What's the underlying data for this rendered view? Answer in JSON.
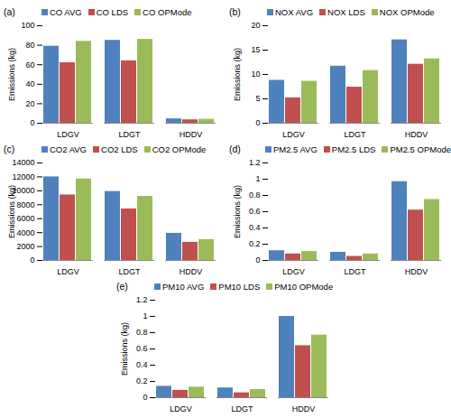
{
  "chart_data": [
    {
      "type": "bar",
      "title": "(a)",
      "ylabel": "Emissions (kg)",
      "categories": [
        "LDGV",
        "LDGT",
        "HDDV"
      ],
      "series": [
        {
          "name": "CO AVG",
          "color": "#4f81bd",
          "values": [
            79,
            85,
            4.5
          ]
        },
        {
          "name": "CO LDS",
          "color": "#c0504d",
          "values": [
            62,
            64,
            3.5
          ]
        },
        {
          "name": "CO OPMode",
          "color": "#9bbb59",
          "values": [
            84,
            86,
            4
          ]
        }
      ],
      "ylim": [
        0,
        100
      ],
      "yticks": [
        0,
        20,
        40,
        60,
        80,
        100
      ],
      "legend": "top",
      "grid": false
    },
    {
      "type": "bar",
      "title": "(b)",
      "ylabel": "Emissions (kg)",
      "categories": [
        "LDGV",
        "LDGT",
        "HDDV"
      ],
      "series": [
        {
          "name": "NOX AVG",
          "color": "#4f81bd",
          "values": [
            8.8,
            11.7,
            17.1
          ]
        },
        {
          "name": "NOX LDS",
          "color": "#c0504d",
          "values": [
            5.2,
            7.4,
            12.1
          ]
        },
        {
          "name": "NOX OPMode",
          "color": "#9bbb59",
          "values": [
            8.6,
            10.8,
            13.2
          ]
        }
      ],
      "ylim": [
        0,
        20
      ],
      "yticks": [
        0,
        5,
        10,
        15,
        20
      ],
      "legend": "top",
      "grid": false
    },
    {
      "type": "bar",
      "title": "(c)",
      "ylabel": "Emissions (kg)",
      "categories": [
        "LDGV",
        "LDGT",
        "HDDV"
      ],
      "series": [
        {
          "name": "CO2 AVG",
          "color": "#4f81bd",
          "values": [
            12000,
            9900,
            3900
          ]
        },
        {
          "name": "CO2 LDS",
          "color": "#c0504d",
          "values": [
            9400,
            7400,
            2600
          ]
        },
        {
          "name": "CO2 OPMode",
          "color": "#9bbb59",
          "values": [
            11700,
            9200,
            3000
          ]
        }
      ],
      "ylim": [
        0,
        14000
      ],
      "yticks": [
        0,
        2000,
        4000,
        6000,
        8000,
        10000,
        12000,
        14000
      ],
      "legend": "top",
      "grid": false
    },
    {
      "type": "bar",
      "title": "(d)",
      "ylabel": "Emissions (kg)",
      "categories": [
        "LDGV",
        "LDGT",
        "HDDV"
      ],
      "series": [
        {
          "name": "PM2.5 AVG",
          "color": "#4f81bd",
          "values": [
            0.12,
            0.1,
            0.97
          ]
        },
        {
          "name": "PM2.5 LDS",
          "color": "#c0504d",
          "values": [
            0.08,
            0.05,
            0.62
          ]
        },
        {
          "name": "PM2.5 OPMode",
          "color": "#9bbb59",
          "values": [
            0.11,
            0.08,
            0.75
          ]
        }
      ],
      "ylim": [
        0,
        1.2
      ],
      "yticks": [
        0,
        0.2,
        0.4,
        0.6,
        0.8,
        1,
        1.2
      ],
      "legend": "top",
      "grid": false
    },
    {
      "type": "bar",
      "title": "(e)",
      "ylabel": "Emissions (kg)",
      "categories": [
        "LDGV",
        "LDGT",
        "HDDV"
      ],
      "series": [
        {
          "name": "PM10 AVG",
          "color": "#4f81bd",
          "values": [
            0.14,
            0.12,
            1.0
          ]
        },
        {
          "name": "PM10 LDS",
          "color": "#c0504d",
          "values": [
            0.09,
            0.06,
            0.64
          ]
        },
        {
          "name": "PM10 OPMode",
          "color": "#9bbb59",
          "values": [
            0.13,
            0.1,
            0.77
          ]
        }
      ],
      "ylim": [
        0,
        1.2
      ],
      "yticks": [
        0,
        0.2,
        0.4,
        0.6,
        0.8,
        1,
        1.2
      ],
      "legend": "top",
      "grid": false
    }
  ]
}
